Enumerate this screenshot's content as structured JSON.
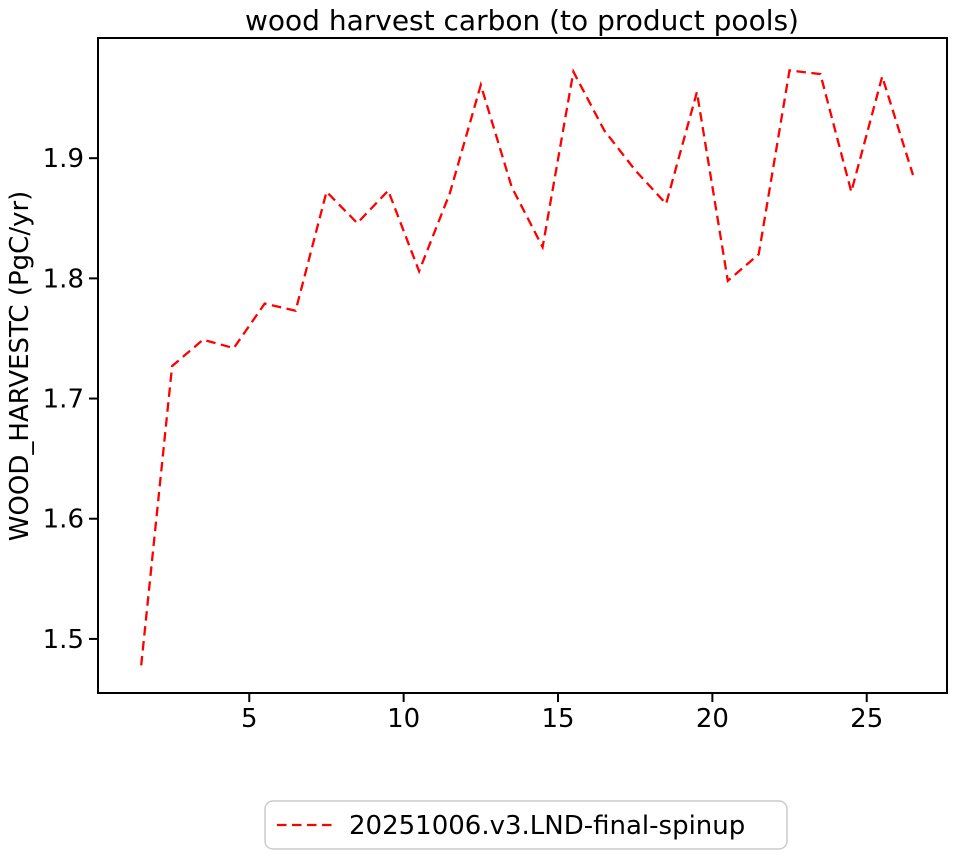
{
  "figure": {
    "background": "#ffffff"
  },
  "chart_data": {
    "type": "line",
    "title": "wood harvest carbon (to product pools)",
    "xlabel": "",
    "ylabel": "WOOD_HARVESTC (PgC/yr)",
    "xlim": [
      0.1,
      27.6
    ],
    "ylim": [
      1.455,
      2.0
    ],
    "xticks": [
      5,
      10,
      15,
      20,
      25
    ],
    "yticks": [
      1.5,
      1.6,
      1.7,
      1.8,
      1.9
    ],
    "grid": false,
    "legend_position": "lower center outside axes",
    "x": [
      1.5,
      2.5,
      3.5,
      4.5,
      5.5,
      6.5,
      7.5,
      8.5,
      9.5,
      10.5,
      11.5,
      12.5,
      13.5,
      14.5,
      15.5,
      16.5,
      17.5,
      18.5,
      19.5,
      20.5,
      21.5,
      22.5,
      23.5,
      24.5,
      25.5,
      26.5
    ],
    "series": [
      {
        "name": "20251006.v3.LND-final-spinup",
        "color": "#ff0000",
        "linestyle": "dashed",
        "values": [
          1.478,
          1.727,
          1.749,
          1.742,
          1.779,
          1.773,
          1.872,
          1.846,
          1.873,
          1.806,
          1.871,
          1.961,
          1.876,
          1.826,
          1.972,
          1.923,
          1.89,
          1.862,
          1.955,
          1.798,
          1.82,
          1.973,
          1.97,
          1.872,
          1.968,
          1.886
        ]
      }
    ]
  },
  "legend": {
    "label": "20251006.v3.LND-final-spinup",
    "line_color": "#ff0000",
    "line_style": "dashed",
    "border_color": "#cccccc"
  },
  "axes": {
    "frame_color": "#000000",
    "tick_color": "#000000",
    "text_color": "#000000"
  }
}
